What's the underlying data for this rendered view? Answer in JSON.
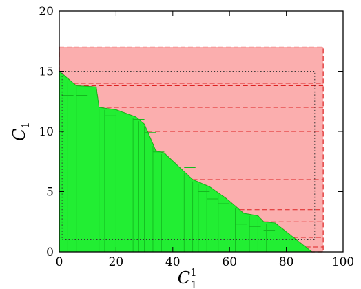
{
  "chart_data": {
    "type": "area",
    "xlabel": "C",
    "xlabel_sub": "1",
    "xlabel_sup": "1",
    "ylabel": "C",
    "ylabel_sub": "1",
    "xlim": [
      0,
      100
    ],
    "ylim": [
      0,
      20
    ],
    "x_ticks": [
      0,
      20,
      40,
      60,
      80,
      100
    ],
    "y_ticks": [
      0,
      5,
      10,
      15,
      20
    ],
    "x_tick_labels": [
      "0",
      "20",
      "40",
      "60",
      "80",
      "100"
    ],
    "y_tick_labels": [
      "0",
      "5",
      "10",
      "15",
      "20"
    ],
    "grid": false,
    "colors": {
      "green_fill": "#22ee33",
      "green_edge": "#14b81f",
      "red_fill": "#fbaeae",
      "red_dash": "#dd2222",
      "dotted": "#333333"
    },
    "green_region": {
      "boundary": [
        [
          0,
          15
        ],
        [
          6,
          13.8
        ],
        [
          13,
          13.7
        ],
        [
          14,
          12
        ],
        [
          20,
          11.8
        ],
        [
          27,
          11.2
        ],
        [
          30,
          10.6
        ],
        [
          34,
          8.4
        ],
        [
          37,
          8.2
        ],
        [
          47,
          6
        ],
        [
          53,
          5.4
        ],
        [
          59,
          4.4
        ],
        [
          65,
          3.2
        ],
        [
          70,
          3
        ],
        [
          72,
          2.5
        ],
        [
          76,
          2.4
        ],
        [
          89,
          0
        ]
      ],
      "inner_vertical_x": [
        3,
        6,
        14,
        16,
        20,
        26,
        28,
        30,
        33,
        36,
        44,
        47,
        49,
        52,
        56,
        62,
        67,
        70,
        73
      ],
      "inner_steps": [
        [
          1,
          13
        ],
        [
          6,
          13
        ],
        [
          16,
          11.3
        ],
        [
          26,
          11
        ],
        [
          30,
          9.9
        ],
        [
          33,
          8.3
        ],
        [
          44,
          7
        ],
        [
          47,
          5.8
        ],
        [
          49,
          5
        ],
        [
          52,
          4.4
        ],
        [
          56,
          4
        ],
        [
          62,
          2.3
        ],
        [
          67,
          2.1
        ],
        [
          72,
          1.8
        ]
      ]
    },
    "red_region": {
      "x_range": [
        0,
        93
      ],
      "top": 17,
      "boundary": [
        [
          0,
          15
        ],
        [
          6,
          13.8
        ],
        [
          13,
          13.7
        ],
        [
          14,
          12
        ],
        [
          20,
          11.8
        ],
        [
          27,
          11.2
        ],
        [
          30,
          10.6
        ],
        [
          34,
          8.4
        ],
        [
          37,
          8.2
        ],
        [
          47,
          6
        ],
        [
          53,
          5.4
        ],
        [
          59,
          4.4
        ],
        [
          65,
          3.2
        ],
        [
          70,
          3
        ],
        [
          72,
          2.5
        ],
        [
          76,
          2.4
        ],
        [
          89,
          0
        ]
      ],
      "dashed_y": [
        14,
        13.8,
        12,
        10,
        8.2,
        6,
        3.5,
        2.5,
        1.2,
        0.4
      ]
    },
    "dotted_box": {
      "x": [
        1,
        90
      ],
      "y": [
        1,
        15
      ]
    }
  }
}
